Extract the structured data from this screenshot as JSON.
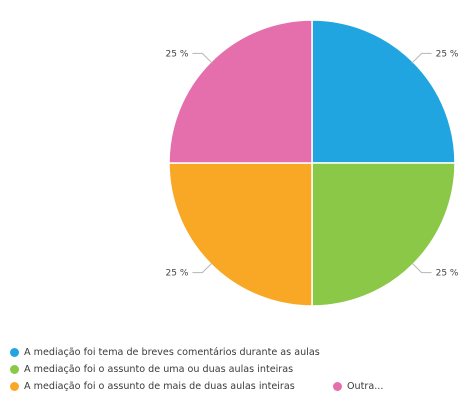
{
  "chart_data": {
    "type": "pie",
    "slices": [
      {
        "label": "A mediação foi tema de breves comentários durante as aulas",
        "value": 25,
        "display": "25 %",
        "color": "#21a5e1"
      },
      {
        "label": "A mediação foi o assunto de uma ou duas aulas inteiras",
        "value": 25,
        "display": "25 %",
        "color": "#8bc847"
      },
      {
        "label": "A mediação foi o assunto de mais de duas aulas inteiras",
        "value": 25,
        "display": "25 %",
        "color": "#f9a825"
      },
      {
        "label": "Outra...",
        "value": 25,
        "display": "25 %",
        "color": "#e56fac"
      }
    ],
    "start_angle_deg": 0,
    "direction": "clockwise",
    "legend_position": "bottom"
  }
}
